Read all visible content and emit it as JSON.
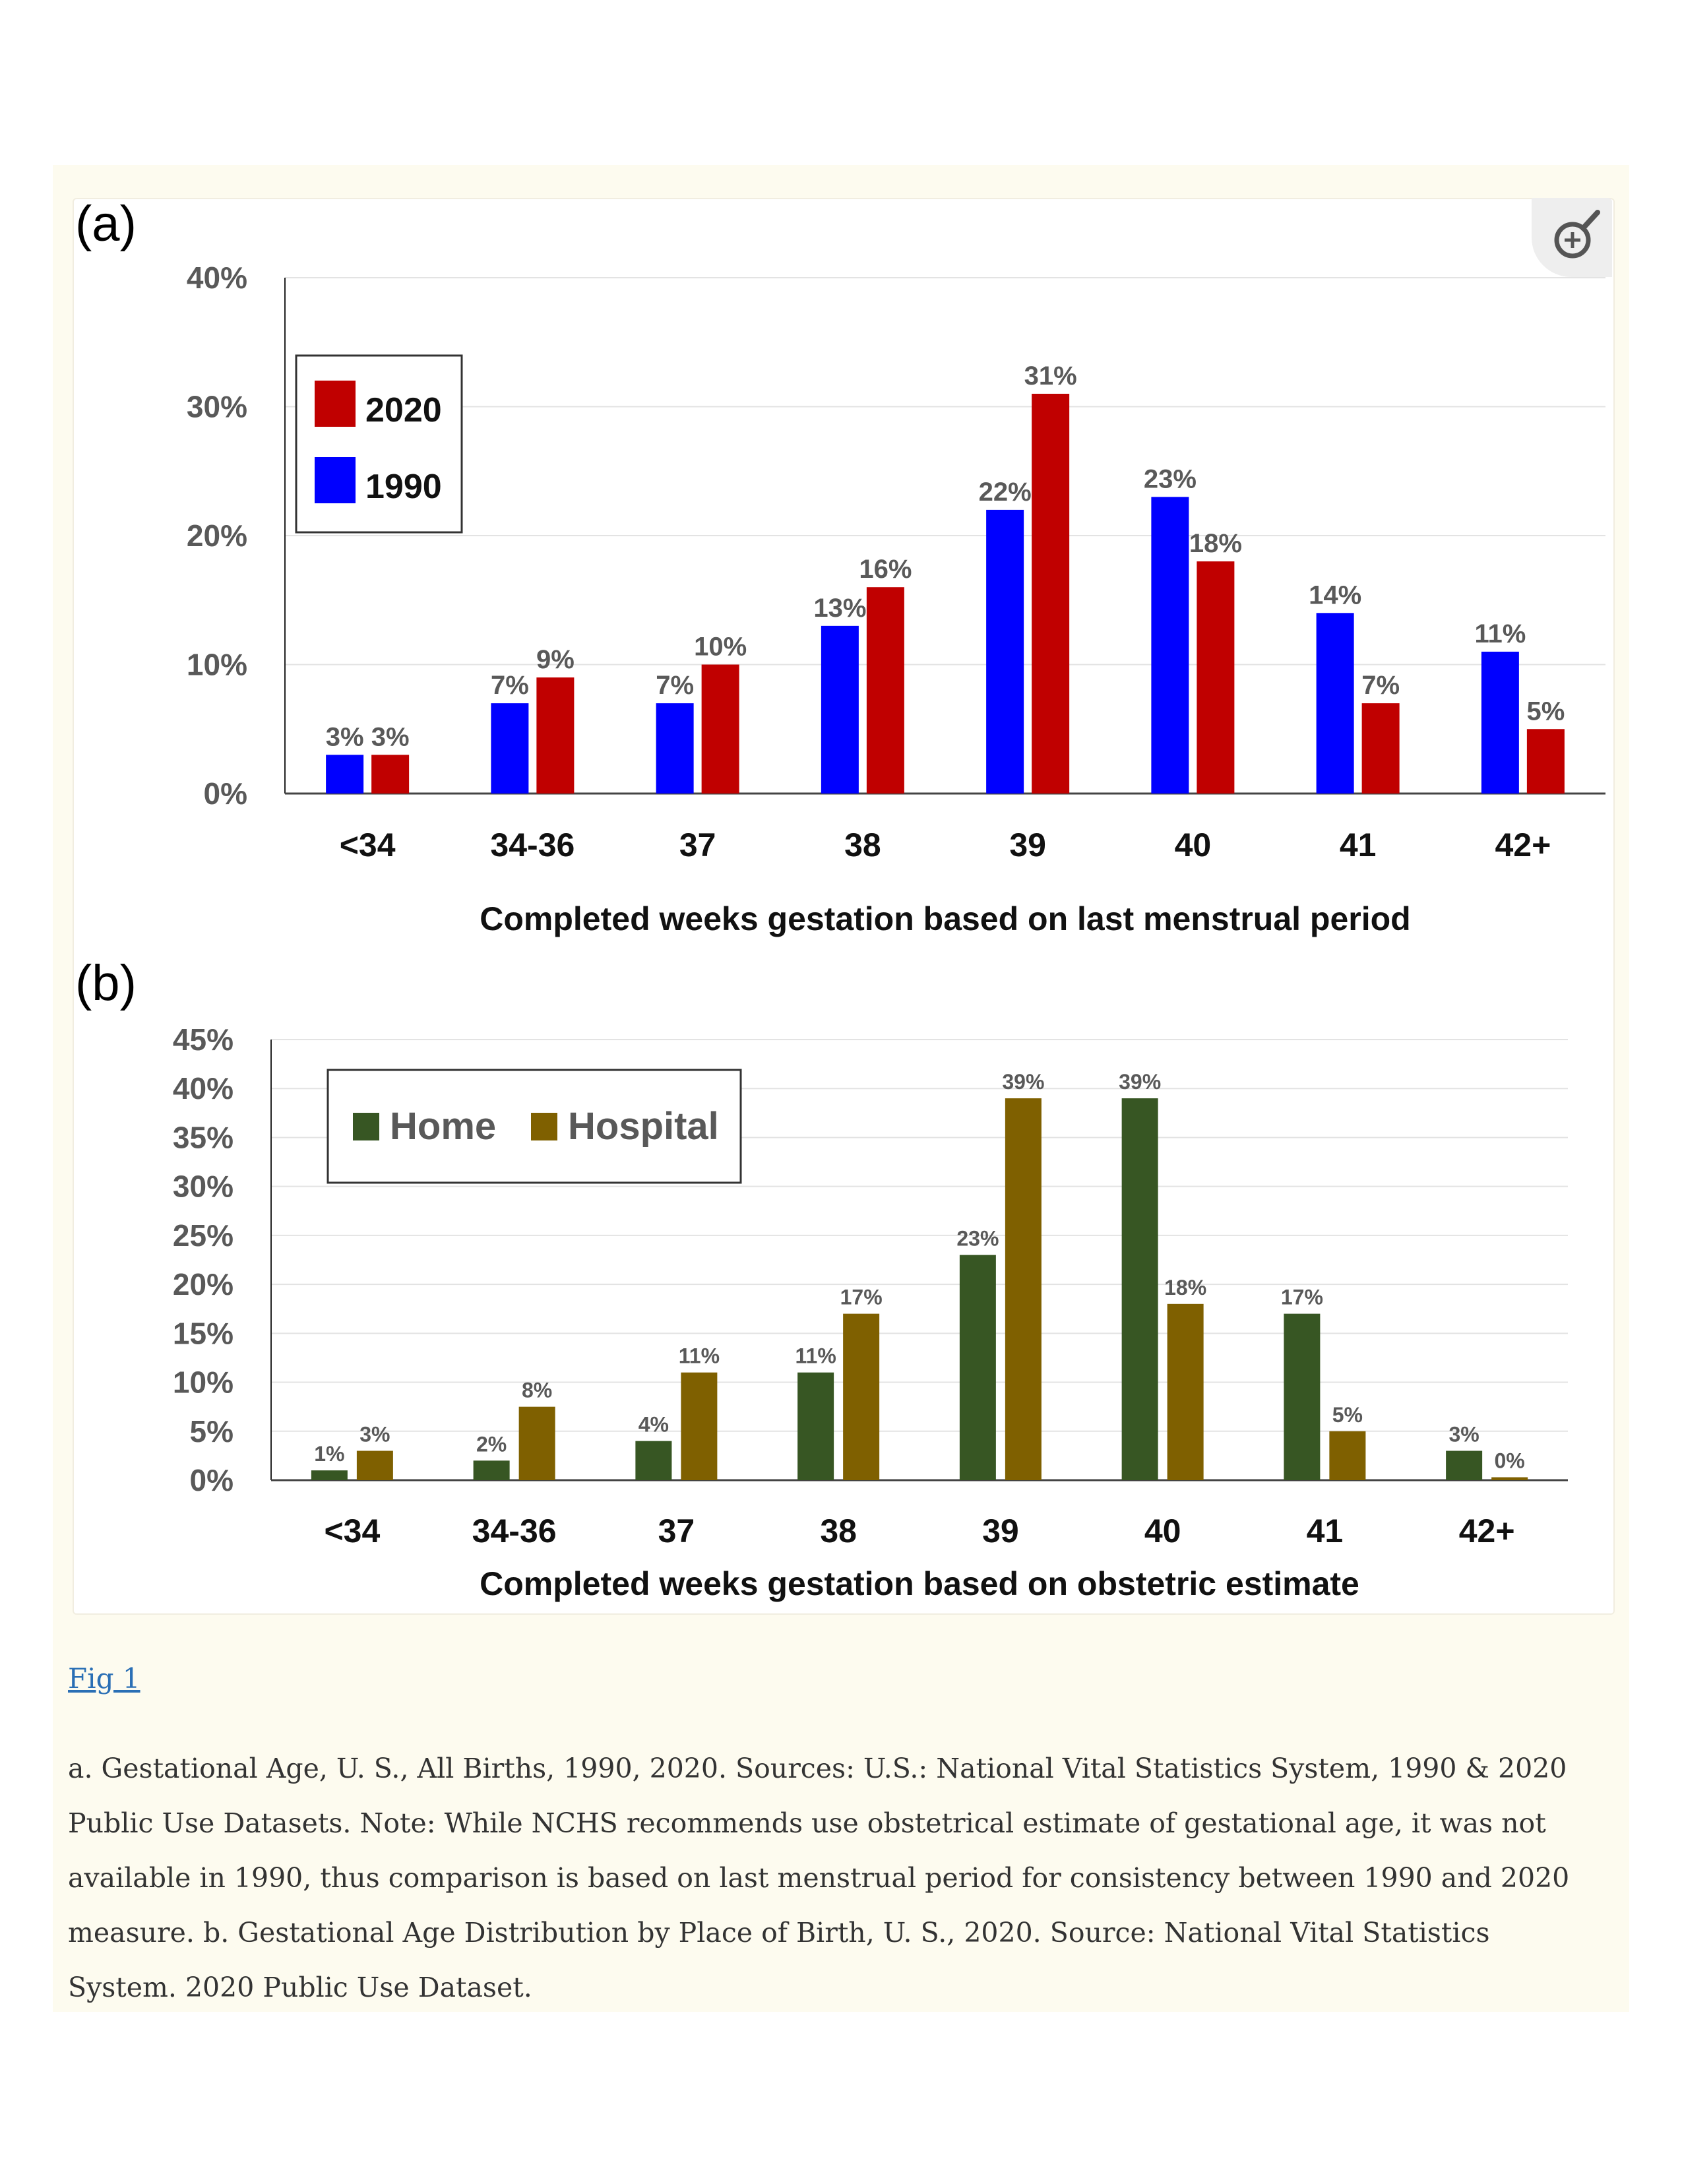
{
  "figure_link": "Fig 1",
  "caption": "a. Gestational Age, U. S., All Births, 1990, 2020. Sources: U.S.: National Vital Statistics System, 1990 & 2020 Public Use Datasets. Note: While NCHS recommends use obstetrical estimate of gestational age, it was not available in 1990, thus comparison is based on last menstrual period for consistency between 1990 and 2020 measure. b. Gestational Age Distribution by Place of Birth, U. S., 2020. Source: National Vital Statistics System. 2020 Public Use Dataset.",
  "zoom_icon": "zoom-in-magnifier-icon",
  "chart_data": [
    {
      "panel_label": "(a)",
      "type": "bar",
      "categories": [
        "<34",
        "34-36",
        "37",
        "38",
        "39",
        "40",
        "41",
        "42+"
      ],
      "xlabel": "Completed weeks gestation based on last menstrual period",
      "ylabel": "",
      "ylim": [
        0,
        40
      ],
      "yticks": [
        "0%",
        "10%",
        "20%",
        "30%",
        "40%"
      ],
      "ytick_values": [
        0,
        10,
        20,
        30,
        40
      ],
      "grid": true,
      "legend_placement": "top-left",
      "legend_order": [
        "2020",
        "1990"
      ],
      "series": [
        {
          "name": "1990",
          "color": "#0000ff",
          "values": [
            3,
            7,
            7,
            13,
            22,
            23,
            14,
            11
          ],
          "labels": [
            "3%",
            "7%",
            "7%",
            "13%",
            "22%",
            "23%",
            "14%",
            "11%"
          ]
        },
        {
          "name": "2020",
          "color": "#c00000",
          "values": [
            3,
            9,
            10,
            16,
            31,
            18,
            7,
            5
          ],
          "labels": [
            "3%",
            "9%",
            "10%",
            "16%",
            "31%",
            "18%",
            "7%",
            "5%"
          ]
        }
      ]
    },
    {
      "panel_label": "(b)",
      "type": "bar",
      "categories": [
        "<34",
        "34-36",
        "37",
        "38",
        "39",
        "40",
        "41",
        "42+"
      ],
      "xlabel": "Completed weeks gestation based on obstetric estimate",
      "ylabel": "",
      "ylim": [
        0,
        45
      ],
      "yticks": [
        "0%",
        "5%",
        "10%",
        "15%",
        "20%",
        "25%",
        "30%",
        "35%",
        "40%",
        "45%"
      ],
      "ytick_values": [
        0,
        5,
        10,
        15,
        20,
        25,
        30,
        35,
        40,
        45
      ],
      "grid": true,
      "legend_placement": "top-left",
      "legend_order": [
        "Home",
        "Hospital"
      ],
      "series": [
        {
          "name": "Home",
          "color": "#375623",
          "values": [
            1,
            2,
            4,
            11,
            23,
            39,
            17,
            3
          ],
          "labels": [
            "1%",
            "2%",
            "4%",
            "11%",
            "23%",
            "39%",
            "17%",
            "3%"
          ]
        },
        {
          "name": "Hospital",
          "color": "#7f6000",
          "values": [
            3,
            7.5,
            11,
            17,
            39,
            18,
            5,
            0.3
          ],
          "labels": [
            "3%",
            "8%",
            "11%",
            "17%",
            "39%",
            "18%",
            "5%",
            "0%"
          ]
        }
      ]
    }
  ]
}
